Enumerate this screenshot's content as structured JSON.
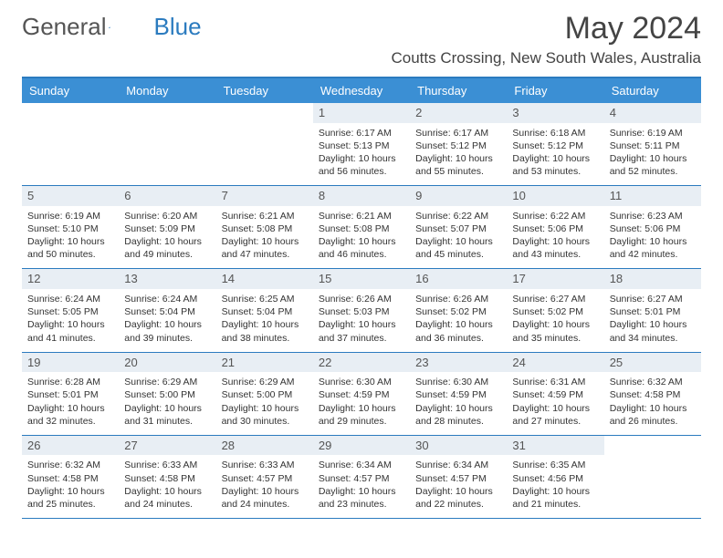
{
  "branding": {
    "name_a": "General",
    "name_b": "Blue",
    "shape_color": "#2b7bbf"
  },
  "title": {
    "month": "May 2024",
    "location": "Coutts Crossing, New South Wales, Australia"
  },
  "colors": {
    "header_bg": "#3b8fd4",
    "border": "#2b7bbf",
    "daylabel_bg": "#e8eef4"
  },
  "weekdays": [
    "Sunday",
    "Monday",
    "Tuesday",
    "Wednesday",
    "Thursday",
    "Friday",
    "Saturday"
  ],
  "weeks": [
    [
      {
        "n": "",
        "sr": "",
        "ss": "",
        "dl": ""
      },
      {
        "n": "",
        "sr": "",
        "ss": "",
        "dl": ""
      },
      {
        "n": "",
        "sr": "",
        "ss": "",
        "dl": ""
      },
      {
        "n": "1",
        "sr": "Sunrise: 6:17 AM",
        "ss": "Sunset: 5:13 PM",
        "dl": "Daylight: 10 hours and 56 minutes."
      },
      {
        "n": "2",
        "sr": "Sunrise: 6:17 AM",
        "ss": "Sunset: 5:12 PM",
        "dl": "Daylight: 10 hours and 55 minutes."
      },
      {
        "n": "3",
        "sr": "Sunrise: 6:18 AM",
        "ss": "Sunset: 5:12 PM",
        "dl": "Daylight: 10 hours and 53 minutes."
      },
      {
        "n": "4",
        "sr": "Sunrise: 6:19 AM",
        "ss": "Sunset: 5:11 PM",
        "dl": "Daylight: 10 hours and 52 minutes."
      }
    ],
    [
      {
        "n": "5",
        "sr": "Sunrise: 6:19 AM",
        "ss": "Sunset: 5:10 PM",
        "dl": "Daylight: 10 hours and 50 minutes."
      },
      {
        "n": "6",
        "sr": "Sunrise: 6:20 AM",
        "ss": "Sunset: 5:09 PM",
        "dl": "Daylight: 10 hours and 49 minutes."
      },
      {
        "n": "7",
        "sr": "Sunrise: 6:21 AM",
        "ss": "Sunset: 5:08 PM",
        "dl": "Daylight: 10 hours and 47 minutes."
      },
      {
        "n": "8",
        "sr": "Sunrise: 6:21 AM",
        "ss": "Sunset: 5:08 PM",
        "dl": "Daylight: 10 hours and 46 minutes."
      },
      {
        "n": "9",
        "sr": "Sunrise: 6:22 AM",
        "ss": "Sunset: 5:07 PM",
        "dl": "Daylight: 10 hours and 45 minutes."
      },
      {
        "n": "10",
        "sr": "Sunrise: 6:22 AM",
        "ss": "Sunset: 5:06 PM",
        "dl": "Daylight: 10 hours and 43 minutes."
      },
      {
        "n": "11",
        "sr": "Sunrise: 6:23 AM",
        "ss": "Sunset: 5:06 PM",
        "dl": "Daylight: 10 hours and 42 minutes."
      }
    ],
    [
      {
        "n": "12",
        "sr": "Sunrise: 6:24 AM",
        "ss": "Sunset: 5:05 PM",
        "dl": "Daylight: 10 hours and 41 minutes."
      },
      {
        "n": "13",
        "sr": "Sunrise: 6:24 AM",
        "ss": "Sunset: 5:04 PM",
        "dl": "Daylight: 10 hours and 39 minutes."
      },
      {
        "n": "14",
        "sr": "Sunrise: 6:25 AM",
        "ss": "Sunset: 5:04 PM",
        "dl": "Daylight: 10 hours and 38 minutes."
      },
      {
        "n": "15",
        "sr": "Sunrise: 6:26 AM",
        "ss": "Sunset: 5:03 PM",
        "dl": "Daylight: 10 hours and 37 minutes."
      },
      {
        "n": "16",
        "sr": "Sunrise: 6:26 AM",
        "ss": "Sunset: 5:02 PM",
        "dl": "Daylight: 10 hours and 36 minutes."
      },
      {
        "n": "17",
        "sr": "Sunrise: 6:27 AM",
        "ss": "Sunset: 5:02 PM",
        "dl": "Daylight: 10 hours and 35 minutes."
      },
      {
        "n": "18",
        "sr": "Sunrise: 6:27 AM",
        "ss": "Sunset: 5:01 PM",
        "dl": "Daylight: 10 hours and 34 minutes."
      }
    ],
    [
      {
        "n": "19",
        "sr": "Sunrise: 6:28 AM",
        "ss": "Sunset: 5:01 PM",
        "dl": "Daylight: 10 hours and 32 minutes."
      },
      {
        "n": "20",
        "sr": "Sunrise: 6:29 AM",
        "ss": "Sunset: 5:00 PM",
        "dl": "Daylight: 10 hours and 31 minutes."
      },
      {
        "n": "21",
        "sr": "Sunrise: 6:29 AM",
        "ss": "Sunset: 5:00 PM",
        "dl": "Daylight: 10 hours and 30 minutes."
      },
      {
        "n": "22",
        "sr": "Sunrise: 6:30 AM",
        "ss": "Sunset: 4:59 PM",
        "dl": "Daylight: 10 hours and 29 minutes."
      },
      {
        "n": "23",
        "sr": "Sunrise: 6:30 AM",
        "ss": "Sunset: 4:59 PM",
        "dl": "Daylight: 10 hours and 28 minutes."
      },
      {
        "n": "24",
        "sr": "Sunrise: 6:31 AM",
        "ss": "Sunset: 4:59 PM",
        "dl": "Daylight: 10 hours and 27 minutes."
      },
      {
        "n": "25",
        "sr": "Sunrise: 6:32 AM",
        "ss": "Sunset: 4:58 PM",
        "dl": "Daylight: 10 hours and 26 minutes."
      }
    ],
    [
      {
        "n": "26",
        "sr": "Sunrise: 6:32 AM",
        "ss": "Sunset: 4:58 PM",
        "dl": "Daylight: 10 hours and 25 minutes."
      },
      {
        "n": "27",
        "sr": "Sunrise: 6:33 AM",
        "ss": "Sunset: 4:58 PM",
        "dl": "Daylight: 10 hours and 24 minutes."
      },
      {
        "n": "28",
        "sr": "Sunrise: 6:33 AM",
        "ss": "Sunset: 4:57 PM",
        "dl": "Daylight: 10 hours and 24 minutes."
      },
      {
        "n": "29",
        "sr": "Sunrise: 6:34 AM",
        "ss": "Sunset: 4:57 PM",
        "dl": "Daylight: 10 hours and 23 minutes."
      },
      {
        "n": "30",
        "sr": "Sunrise: 6:34 AM",
        "ss": "Sunset: 4:57 PM",
        "dl": "Daylight: 10 hours and 22 minutes."
      },
      {
        "n": "31",
        "sr": "Sunrise: 6:35 AM",
        "ss": "Sunset: 4:56 PM",
        "dl": "Daylight: 10 hours and 21 minutes."
      },
      {
        "n": "",
        "sr": "",
        "ss": "",
        "dl": ""
      }
    ]
  ]
}
